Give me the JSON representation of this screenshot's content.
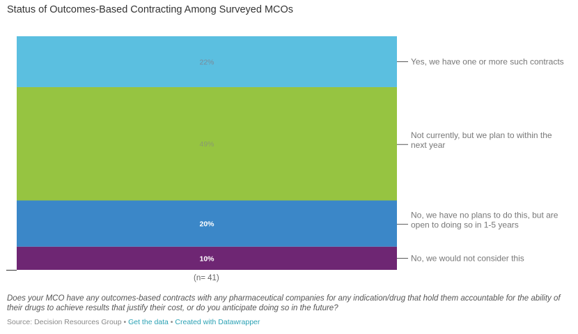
{
  "title": "Status of Outcomes-Based Contracting Among Surveyed MCOs",
  "n_label": "(n= 41)",
  "question": "Does your MCO have any outcomes-based contracts with any pharmaceutical companies for any indication/drug that hold them accountable for the ability of their drugs to achieve results that justify their cost, or do you anticipate doing so in the future?",
  "footer": {
    "source": "Source: Decision Resources Group",
    "separator": " • ",
    "get_data": "Get the data",
    "created_with": "Created with Datawrapper"
  },
  "chart_data": {
    "type": "bar",
    "subtype": "stacked-100-single-column",
    "title": "Status of Outcomes-Based Contracting Among Surveyed MCOs",
    "xlabel": "(n= 41)",
    "ylabel": "",
    "ylim": [
      0,
      100
    ],
    "unit": "%",
    "legend_placement": "right (direct labels)",
    "series": [
      {
        "name": "Yes, we have one or more such contracts",
        "lines": [
          "Yes, we have one or more such contracts"
        ],
        "value": 22,
        "label": "22%",
        "color": "#5bbfe0",
        "label_color": "#7a8a98"
      },
      {
        "name": "Not currently, but we plan to within the next year",
        "lines": [
          "Not currently, but we plan to within the",
          "next year"
        ],
        "value": 49,
        "label": "49%",
        "color": "#96c441",
        "label_color": "#8a9a70"
      },
      {
        "name": "No, we have no plans to do this, but are open to doing so in 1-5 years",
        "lines": [
          "No, we have no plans to do this, but are",
          "open to doing so in 1-5 years"
        ],
        "value": 20,
        "label": "20%",
        "color": "#3b87c8",
        "label_color": "#ffffff"
      },
      {
        "name": "No, we would not consider this",
        "lines": [
          "No, we would not consider this"
        ],
        "value": 10,
        "label": "10%",
        "color": "#6e2673",
        "label_color": "#ffffff"
      }
    ]
  }
}
